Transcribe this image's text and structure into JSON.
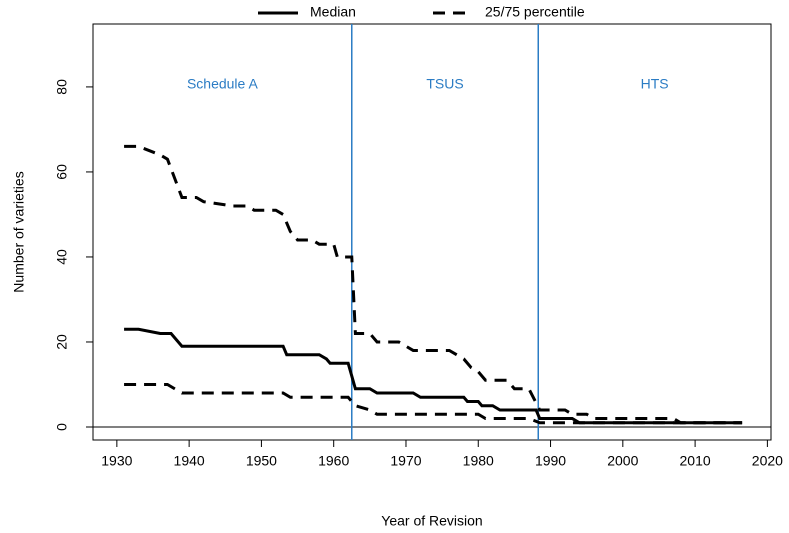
{
  "chart_data": {
    "type": "line",
    "xlabel": "Year of Revision",
    "ylabel": "Number of varieties",
    "xlim": [
      1926.7,
      2020.5
    ],
    "ylim": [
      -3.06,
      94.8
    ],
    "xticks": [
      1930,
      1940,
      1950,
      1960,
      1970,
      1980,
      1990,
      2000,
      2010,
      2020
    ],
    "yticks": [
      0,
      20,
      40,
      60,
      80
    ],
    "hlines": [
      0
    ],
    "vlines": [
      1962.5,
      1988.3
    ],
    "vline_color": "#2b7cc4",
    "regions": [
      "Schedule A",
      "TSUS",
      "HTS"
    ],
    "region_label_y": 80.5,
    "region_color": "#2b7cc4",
    "series": [
      {
        "name": "Median",
        "color": "#000000",
        "dash": false,
        "x": [
          1931,
          1933,
          1936,
          1937.5,
          1939,
          1953,
          1953.5,
          1958,
          1959,
          1959.5,
          1962,
          1963,
          1965,
          1966,
          1971,
          1972,
          1978,
          1978.5,
          1980,
          1980.5,
          1982,
          1983,
          1988,
          1988.5,
          1993,
          1994,
          2016.5
        ],
        "values": [
          23,
          23,
          22,
          22,
          19,
          19,
          17,
          17,
          16,
          15,
          15,
          9,
          9,
          8,
          8,
          7,
          7,
          6,
          6,
          5,
          5,
          4,
          4,
          2,
          2,
          1,
          1
        ]
      },
      {
        "name": "25/75 percentile",
        "color": "#000000",
        "dash": true,
        "x": [
          1931,
          1933,
          1936,
          1937,
          1939,
          1941,
          1942,
          1946,
          1948,
          1949,
          1952,
          1953,
          1954,
          1955,
          1957,
          1958,
          1960,
          1960.5,
          1962.5,
          1963,
          1965,
          1966,
          1969,
          1970,
          1971,
          1976,
          1977,
          1978,
          1979,
          1980,
          1981,
          1984,
          1985,
          1987,
          1988.5,
          1992,
          1993,
          1995,
          1996,
          2007,
          2008,
          2016.5
        ],
        "values": [
          66,
          66,
          64,
          63,
          54,
          54,
          53,
          52,
          52,
          51,
          51,
          50,
          46,
          44,
          44,
          43,
          43,
          40,
          40,
          22,
          22,
          20,
          20,
          19,
          18,
          18,
          17,
          16,
          14,
          13,
          11,
          11,
          9,
          9,
          4,
          4,
          3,
          3,
          2,
          2,
          1,
          1
        ]
      },
      {
        "color": "#000000",
        "dash": true,
        "x": [
          1931,
          1937,
          1939,
          1953,
          1954,
          1962,
          1963,
          1965,
          1966,
          1977,
          1980,
          1981,
          1987,
          1988.5,
          1994,
          2016.5
        ],
        "values": [
          10,
          10,
          8,
          8,
          7,
          7,
          5,
          4,
          3,
          3,
          3,
          2,
          2,
          1,
          1,
          1
        ]
      }
    ]
  }
}
